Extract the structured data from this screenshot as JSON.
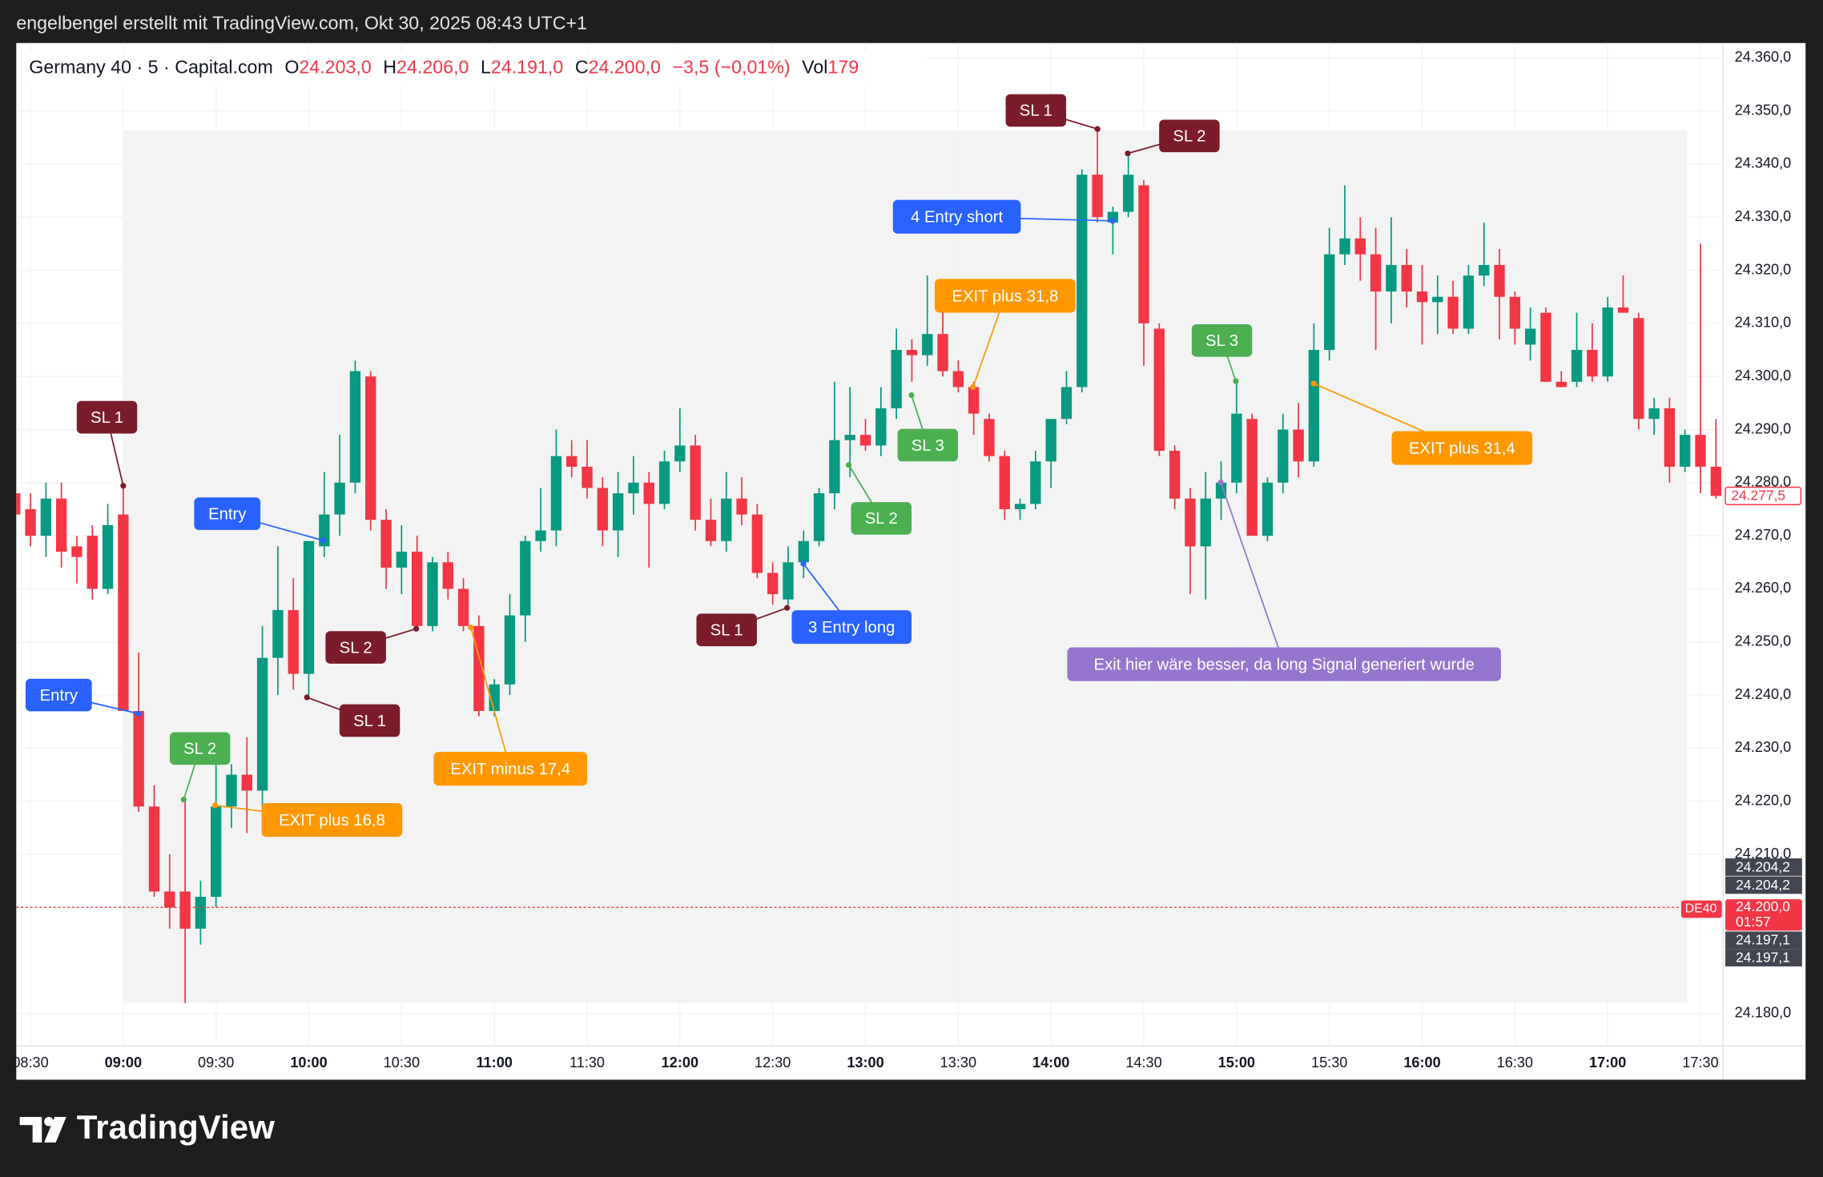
{
  "header": {
    "text": "engelbengel erstellt mit TradingView.com, Okt 30, 2025 08:43 UTC+1"
  },
  "footer": {
    "brand": "TradingView"
  },
  "chart_data": {
    "type": "candlestick",
    "title": "Germany 40 · 5 · Capital.com",
    "legend": {
      "open": {
        "key": "O",
        "value": "24.203,0"
      },
      "high": {
        "key": "H",
        "value": "24.206,0"
      },
      "low": {
        "key": "L",
        "value": "24.191,0"
      },
      "close": {
        "key": "C",
        "value": "24.200,0"
      },
      "change": "−3,5 (−0,01%)",
      "volume": {
        "key": "Vol",
        "value": "179"
      }
    },
    "x": [
      null,
      "08:30",
      null,
      null,
      null,
      null,
      null,
      "09:00",
      null,
      null,
      null,
      null,
      null,
      "09:30",
      null,
      null,
      null,
      null,
      null,
      "10:00",
      null,
      null,
      null,
      null,
      null,
      "10:30",
      null,
      null,
      null,
      null,
      null,
      "11:00",
      null,
      null,
      null,
      null,
      null,
      "11:30",
      null,
      null,
      null,
      null,
      null,
      "12:00",
      null,
      null,
      null,
      null,
      null,
      "12:30",
      null,
      null,
      null,
      null,
      null,
      "13:00",
      null,
      null,
      null,
      null,
      null,
      "13:30",
      null,
      null,
      null,
      null,
      null,
      "14:00",
      null,
      null,
      null,
      null,
      null,
      "14:30",
      null,
      null,
      null,
      null,
      null,
      "15:00",
      null,
      null,
      null,
      null,
      null,
      "15:30",
      null,
      null,
      null,
      null,
      null,
      "16:00",
      null,
      null,
      null,
      null,
      null,
      "16:30",
      null,
      null,
      null,
      null,
      null,
      "17:00",
      null,
      null,
      null,
      null,
      null,
      "17:30",
      null
    ],
    "open": [
      24278,
      24275,
      24270,
      24277,
      24268,
      24270,
      24260,
      24274,
      24237,
      24219,
      24203,
      24203,
      24196,
      24202,
      24219,
      24225,
      24222,
      24247,
      24256,
      24244,
      24268,
      24274,
      24280,
      24300,
      24273,
      24264,
      24267,
      24253,
      24265,
      24260,
      24253,
      24237,
      24242,
      24255,
      24269,
      24271,
      24285,
      24283,
      24279,
      24271,
      24278,
      24280,
      24276,
      24284,
      24287,
      24273,
      24269,
      24277,
      24274,
      24263,
      24258,
      24265,
      24269,
      24278,
      24288,
      24289,
      24287,
      24294,
      24305,
      24304,
      24308,
      24301,
      24298,
      24292,
      24285,
      24275,
      24276,
      24284,
      24292,
      24298,
      24338,
      24329,
      24331,
      24336,
      24309,
      24286,
      24277,
      24268,
      24277,
      24280,
      24292,
      24270,
      24280,
      24290,
      24284,
      24305,
      24323,
      24326,
      24323,
      24316,
      24321,
      24316,
      24314,
      24315,
      24309,
      24319,
      24321,
      24315,
      24306,
      24312,
      24299,
      24299,
      24305,
      24300,
      24313,
      24311,
      24292,
      24294,
      24283,
      24289,
      24283
    ],
    "high": [
      24280,
      24278,
      24280,
      24280,
      24270,
      24272,
      24276,
      24279,
      24248,
      24223,
      24210,
      24220,
      24205,
      24231,
      24227,
      24232,
      24253,
      24268,
      24262,
      24269,
      24282,
      24289,
      24303,
      24301,
      24275,
      24272,
      24270,
      24266,
      24267,
      24262,
      24255,
      24243,
      24259,
      24270,
      24279,
      24290,
      24288,
      24288,
      24281,
      24282,
      24285,
      24282,
      24286,
      24294,
      24289,
      24277,
      24282,
      24281,
      24276,
      24265,
      24268,
      24271,
      24279,
      24299,
      24298,
      24292,
      24298,
      24309,
      24307,
      24319,
      24318,
      24303,
      24299,
      24293,
      24286,
      24277,
      24286,
      24292,
      24301,
      24339,
      24347,
      24332,
      24342,
      24337,
      24310,
      24287,
      24279,
      24282,
      24284,
      24299,
      24293,
      24281,
      24293,
      24295,
      24310,
      24328,
      24336,
      24330,
      24328,
      24330,
      24324,
      24321,
      24319,
      24318,
      24321,
      24329,
      24324,
      24316,
      24313,
      24313,
      24301,
      24312,
      24310,
      24315,
      24319,
      24312,
      24296,
      24296,
      24290,
      24325,
      24292
    ],
    "low": [
      24272,
      24268,
      24266,
      24264,
      24261,
      24258,
      24259,
      24237,
      24218,
      24202,
      24196,
      24182,
      24193,
      24200,
      24215,
      24214,
      24218,
      24240,
      24241,
      24240,
      24266,
      24270,
      24278,
      24271,
      24260,
      24259,
      24252,
      24252,
      24258,
      24252,
      24236,
      24236,
      24240,
      24250,
      24267,
      24268,
      24281,
      24277,
      24268,
      24266,
      24274,
      24264,
      24275,
      24282,
      24271,
      24268,
      24267,
      24272,
      24262,
      24257,
      24257,
      24262,
      24268,
      24275,
      24281,
      24286,
      24285,
      24292,
      24299,
      24302,
      24300,
      24297,
      24289,
      24284,
      24273,
      24273,
      24275,
      24279,
      24291,
      24297,
      24329,
      24323,
      24330,
      24302,
      24285,
      24275,
      24259,
      24258,
      24273,
      24278,
      24270,
      24269,
      24278,
      24281,
      24283,
      24303,
      24321,
      24318,
      24305,
      24310,
      24313,
      24306,
      24308,
      24308,
      24308,
      24317,
      24307,
      24306,
      24303,
      24299,
      24298,
      24298,
      24299,
      24299,
      24312,
      24290,
      24289,
      24280,
      24282,
      24278,
      24277
    ],
    "close": [
      24274,
      24270,
      24277,
      24267,
      24266,
      24260,
      24272,
      24237,
      24219,
      24203,
      24200,
      24196,
      24202,
      24219,
      24225,
      24222,
      24247,
      24256,
      24244,
      24269,
      24274,
      24280,
      24301,
      24273,
      24264,
      24267,
      24253,
      24265,
      24260,
      24253,
      24237,
      24242,
      24255,
      24269,
      24271,
      24285,
      24283,
      24279,
      24271,
      24278,
      24280,
      24276,
      24284,
      24287,
      24273,
      24269,
      24277,
      24274,
      24263,
      24259,
      24265,
      24269,
      24278,
      24288,
      24289,
      24287,
      24294,
      24305,
      24304,
      24308,
      24301,
      24298,
      24293,
      24285,
      24275,
      24276,
      24284,
      24292,
      24298,
      24338,
      24330,
      24331,
      24338,
      24310,
      24286,
      24277,
      24268,
      24277,
      24280,
      24293,
      24270,
      24280,
      24290,
      24284,
      24305,
      24323,
      24326,
      24323,
      24316,
      24321,
      24316,
      24314,
      24315,
      24309,
      24319,
      24321,
      24315,
      24309,
      24309,
      24299,
      24298,
      24305,
      24300,
      24313,
      24312,
      24292,
      24294,
      24283,
      24289,
      24283,
      24277.5
    ],
    "up_color": "#089981",
    "down_color": "#f23645",
    "ylim": [
      24173.9,
      24362.8
    ],
    "yticks": [
      {
        "value": 24360,
        "label": "24.360,0"
      },
      {
        "value": 24350,
        "label": "24.350,0"
      },
      {
        "value": 24340,
        "label": "24.340,0"
      },
      {
        "value": 24330,
        "label": "24.330,0"
      },
      {
        "value": 24320,
        "label": "24.320,0"
      },
      {
        "value": 24310,
        "label": "24.310,0"
      },
      {
        "value": 24300,
        "label": "24.300,0"
      },
      {
        "value": 24290,
        "label": "24.290,0"
      },
      {
        "value": 24280,
        "label": "24.280,0"
      },
      {
        "value": 24270,
        "label": "24.270,0"
      },
      {
        "value": 24260,
        "label": "24.260,0"
      },
      {
        "value": 24250,
        "label": "24.250,0"
      },
      {
        "value": 24240,
        "label": "24.240,0"
      },
      {
        "value": 24230,
        "label": "24.230,0"
      },
      {
        "value": 24220,
        "label": "24.220,0"
      },
      {
        "value": 24210,
        "label": "24.210,0"
      },
      {
        "value": 24180,
        "label": "24.180,0"
      }
    ],
    "grid": true,
    "price_labels": [
      {
        "value": 24204.2,
        "label": "24.204,2",
        "color": "#434651"
      },
      {
        "value": 24204.2,
        "label": "24.204,2",
        "color": "#434651"
      },
      {
        "value": 24200,
        "label": "24.200,0",
        "countdown": "01:57",
        "tag": "DE40",
        "color": "#f23645"
      },
      {
        "value": 24197.1,
        "label": "24.197,1",
        "color": "#434651"
      },
      {
        "value": 24197.1,
        "label": "24.197,1",
        "color": "#434651"
      },
      {
        "value": 24277.5,
        "label": "24.277,5",
        "color": "#f23645"
      }
    ],
    "annotations": [
      {
        "text": "SL 1",
        "color": "#7b1c2a"
      },
      {
        "text": "Entry",
        "color": "#2962ff"
      },
      {
        "text": "SL 2",
        "color": "#4caf50"
      },
      {
        "text": "EXIT plus 16,8",
        "color": "#ff9800"
      },
      {
        "text": "Entry",
        "color": "#2962ff"
      },
      {
        "text": "SL 2",
        "color": "#7b1c2a"
      },
      {
        "text": "SL 1",
        "color": "#7b1c2a"
      },
      {
        "text": "EXIT minus 17,4",
        "color": "#ff9800"
      },
      {
        "text": "SL 1",
        "color": "#7b1c2a"
      },
      {
        "text": "3 Entry long",
        "color": "#2962ff"
      },
      {
        "text": "SL 2",
        "color": "#4caf50"
      },
      {
        "text": "SL 3",
        "color": "#4caf50"
      },
      {
        "text": "EXIT plus 31,8",
        "color": "#ff9800"
      },
      {
        "text": "4 Entry short",
        "color": "#2962ff"
      },
      {
        "text": "SL 1",
        "color": "#7b1c2a"
      },
      {
        "text": "SL 2",
        "color": "#7b1c2a"
      },
      {
        "text": "SL 3",
        "color": "#4caf50"
      },
      {
        "text": "EXIT plus 31,4",
        "color": "#ff9800"
      },
      {
        "text": "Exit hier wäre besser, da long Signal generiert wurde",
        "color": "#9575cd"
      }
    ]
  }
}
